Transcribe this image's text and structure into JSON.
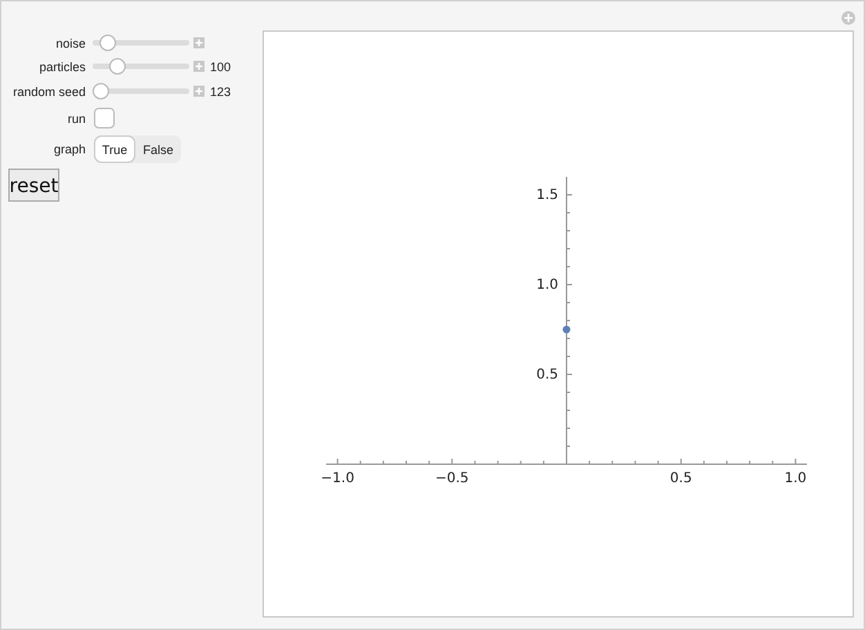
{
  "chart_data": {
    "type": "scatter",
    "x": [
      0
    ],
    "series": [
      {
        "color": "#5e81b5",
        "values": [
          0.75
        ]
      }
    ],
    "xlim": [
      -1.05,
      1.05
    ],
    "ylim": [
      0,
      1.6
    ],
    "xticks": [
      {
        "value": -1,
        "label": "−1.0"
      },
      {
        "value": -0.9,
        "label": null
      },
      {
        "value": -0.8,
        "label": null
      },
      {
        "value": -0.7,
        "label": null
      },
      {
        "value": -0.6,
        "label": null
      },
      {
        "value": -0.5,
        "label": "−0.5"
      },
      {
        "value": -0.4,
        "label": null
      },
      {
        "value": -0.3,
        "label": null
      },
      {
        "value": -0.2,
        "label": null
      },
      {
        "value": -0.1,
        "label": null
      },
      {
        "value": 0.1,
        "label": null
      },
      {
        "value": 0.2,
        "label": null
      },
      {
        "value": 0.3,
        "label": null
      },
      {
        "value": 0.4,
        "label": null
      },
      {
        "value": 0.5,
        "label": "0.5"
      },
      {
        "value": 0.6,
        "label": null
      },
      {
        "value": 0.7,
        "label": null
      },
      {
        "value": 0.8,
        "label": null
      },
      {
        "value": 0.9,
        "label": null
      },
      {
        "value": 1,
        "label": "1.0"
      }
    ],
    "yticks": [
      {
        "value": 0.1,
        "label": null
      },
      {
        "value": 0.2,
        "label": null
      },
      {
        "value": 0.3,
        "label": null
      },
      {
        "value": 0.4,
        "label": null
      },
      {
        "value": 0.5,
        "label": "0.5"
      },
      {
        "value": 0.6,
        "label": null
      },
      {
        "value": 0.7,
        "label": null
      },
      {
        "value": 0.8,
        "label": null
      },
      {
        "value": 0.9,
        "label": null
      },
      {
        "value": 1,
        "label": "1.0"
      },
      {
        "value": 1.1,
        "label": null
      },
      {
        "value": 1.2,
        "label": null
      },
      {
        "value": 1.3,
        "label": null
      },
      {
        "value": 1.4,
        "label": null
      },
      {
        "value": 1.5,
        "label": "1.5"
      }
    ],
    "marker": "circle",
    "grid": false,
    "annotations": [
      "noise",
      "particles",
      "100",
      "random seed",
      "123",
      "run",
      "graph",
      "True",
      "False",
      "reset"
    ]
  }
}
